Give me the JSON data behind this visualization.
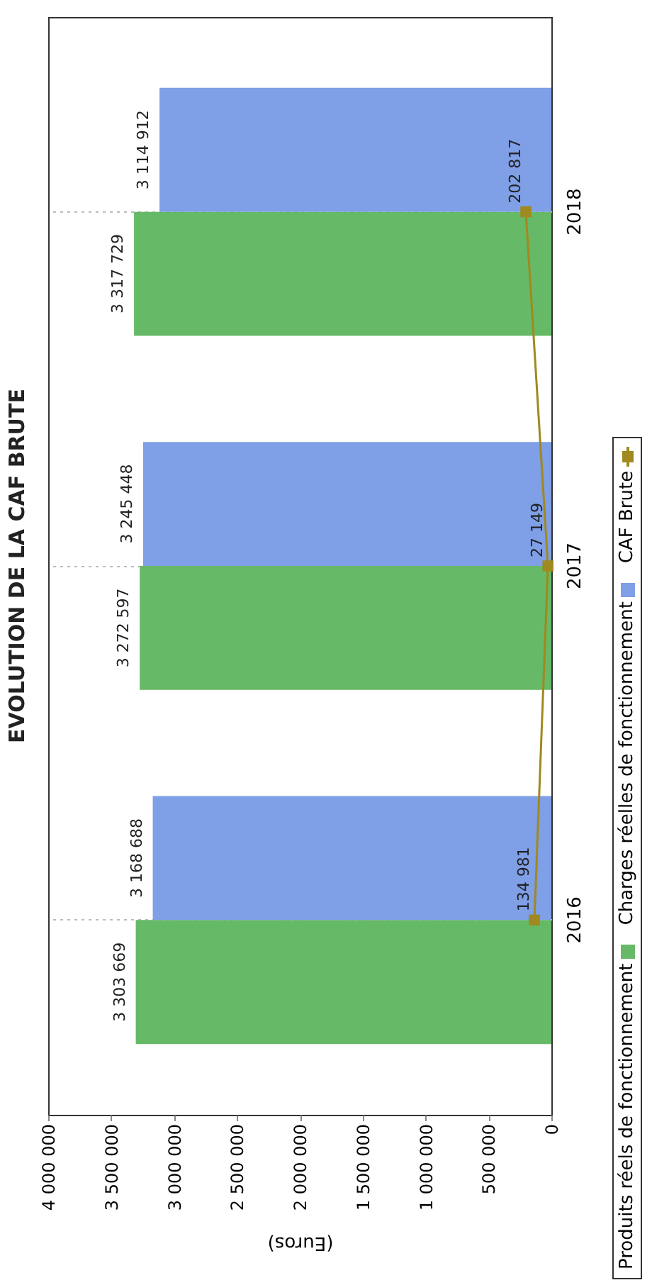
{
  "chart_data": {
    "type": "bar",
    "orientation": "horizontal",
    "title": "EVOLUTION DE LA CAF BRUTE",
    "xlabel": "(Euros)",
    "categories": [
      "2018",
      "2017",
      "2016"
    ],
    "series": [
      {
        "name": "Produits réels de fonctionnement",
        "color": "#66b966",
        "values": [
          3317729,
          3272597,
          3303669
        ]
      },
      {
        "name": "Charges réelles de fonctionnement",
        "color": "#7f9fe6",
        "values": [
          3114912,
          3245448,
          3168688
        ]
      },
      {
        "name": "CAF Brute",
        "type": "line",
        "color": "#a0891e",
        "marker": "square",
        "values": [
          202817,
          27149,
          134981
        ]
      }
    ],
    "xlim": [
      4000000,
      0
    ],
    "xticks": [
      {
        "value": 4000000,
        "label": "4 000 000"
      },
      {
        "value": 3500000,
        "label": "3 500 000"
      },
      {
        "value": 3000000,
        "label": "3 000 000"
      },
      {
        "value": 2500000,
        "label": "2 500 000"
      },
      {
        "value": 2000000,
        "label": "2 000 000"
      },
      {
        "value": 1500000,
        "label": "1 500 000"
      },
      {
        "value": 1000000,
        "label": "1 000 000"
      },
      {
        "value": 500000,
        "label": "500 000"
      },
      {
        "value": 0,
        "label": "0"
      }
    ],
    "grid": "y",
    "legend": "right",
    "data_labels": true
  }
}
